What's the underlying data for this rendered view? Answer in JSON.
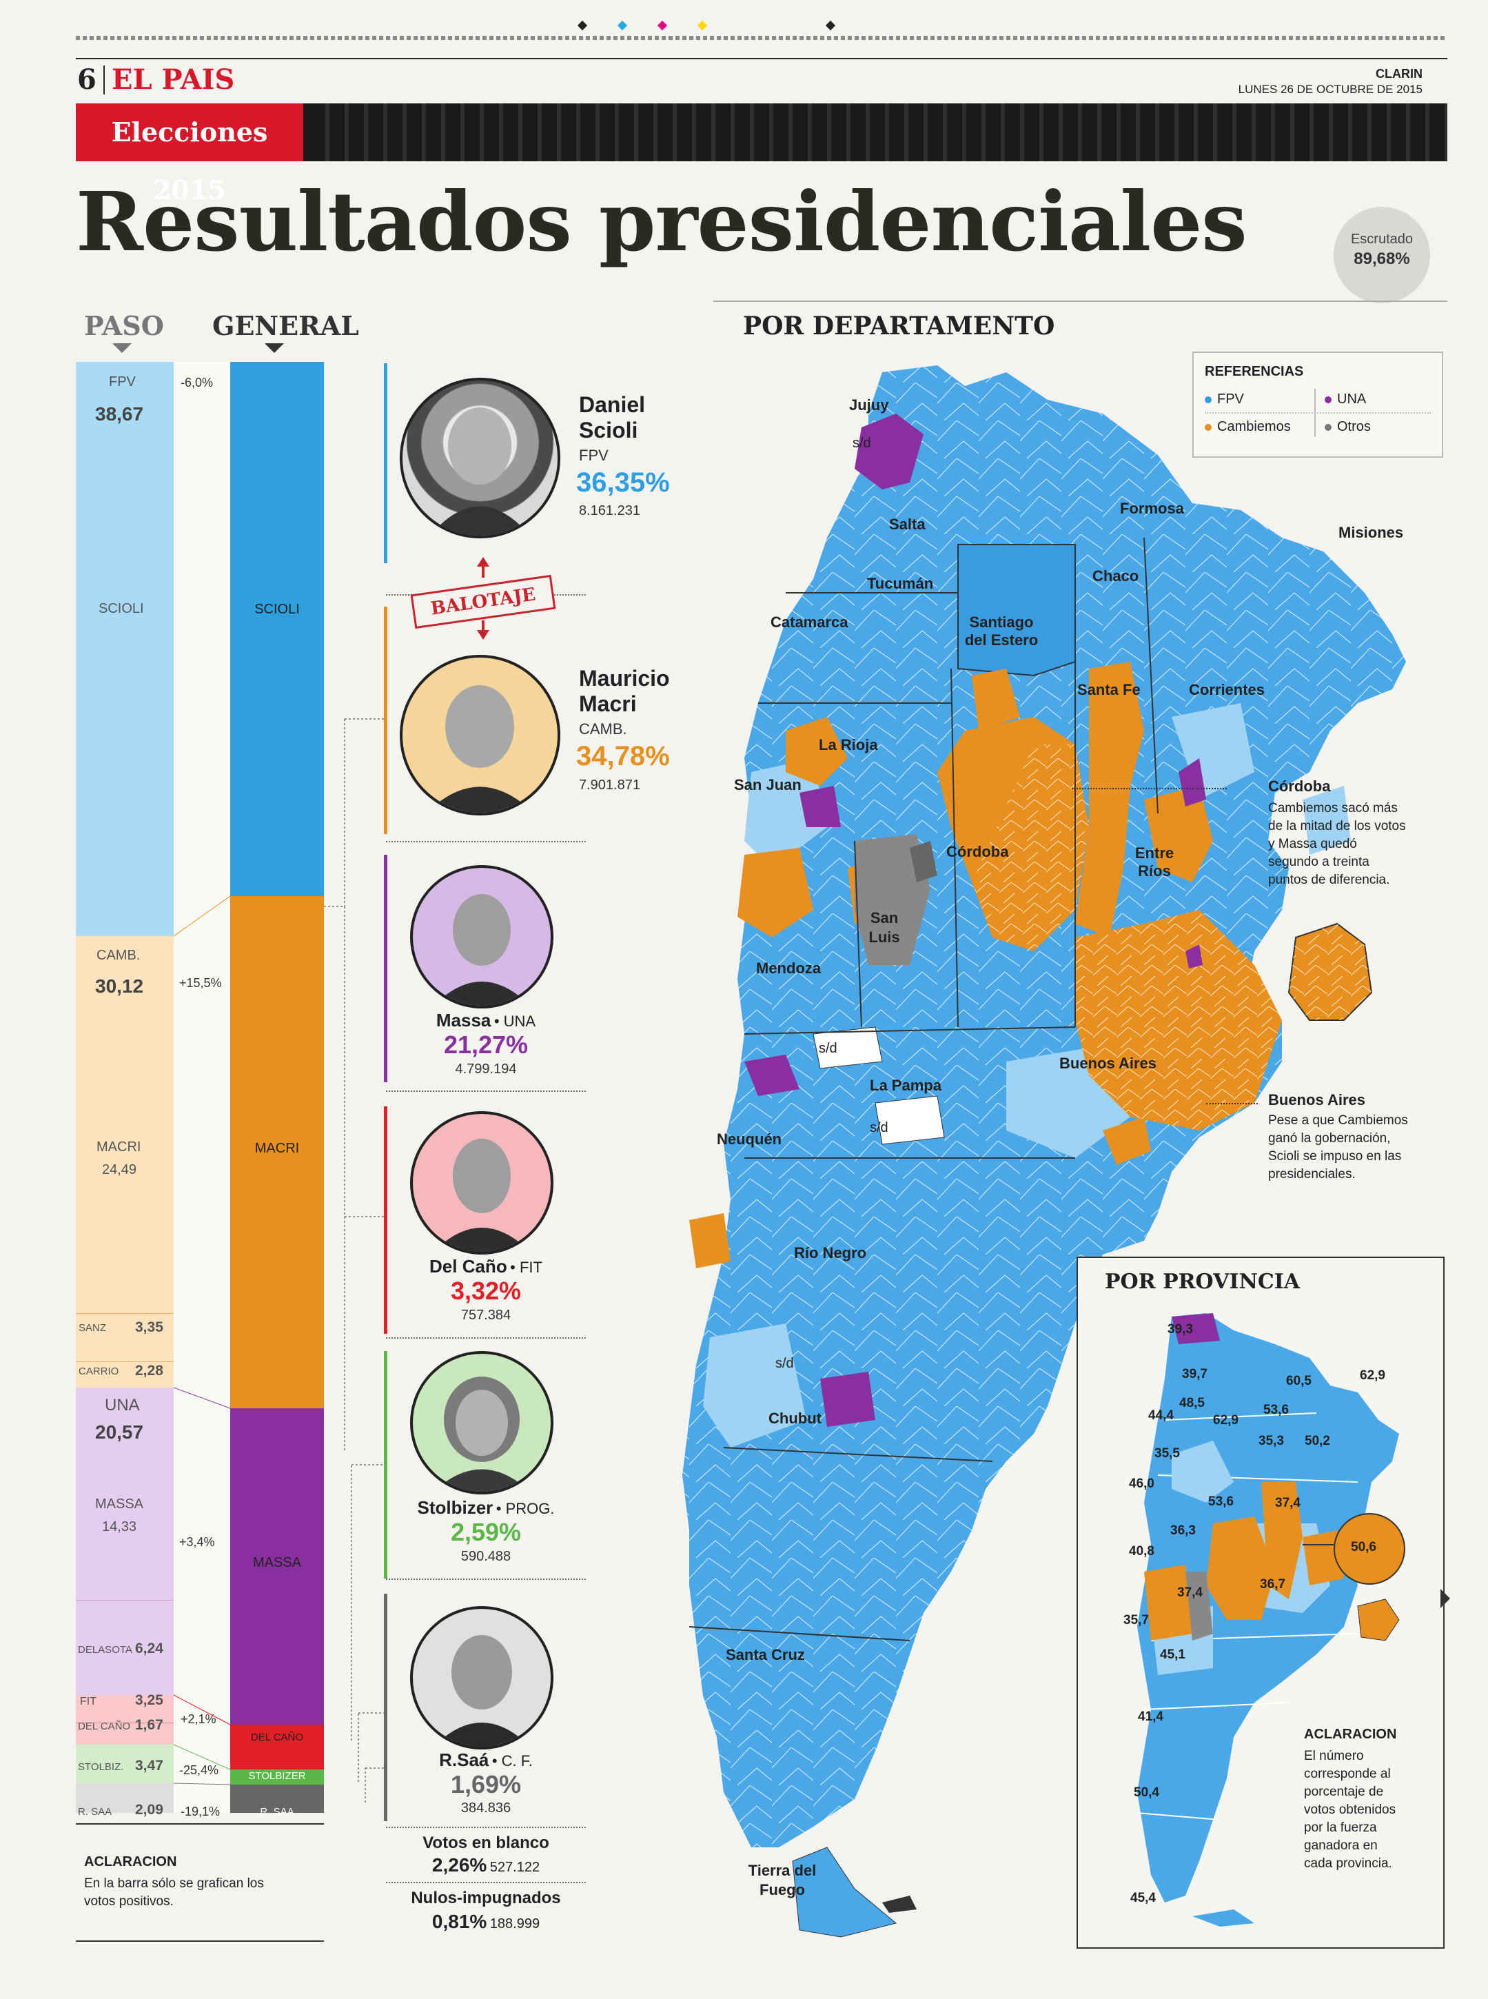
{
  "header": {
    "page_number": "6",
    "section": "EL PAIS",
    "publication": "CLARIN",
    "date": "LUNES 26 DE OCTUBRE DE 2015",
    "tag": "Elecciones 2015"
  },
  "title": "Resultados presidenciales",
  "escrutado": {
    "label": "Escrutado",
    "value": "89,68%"
  },
  "bars": {
    "paso_title": "PASO",
    "general_title": "GENERAL",
    "paso": [
      {
        "party": "FPV",
        "value": "38,67",
        "candidate": "SCIOLI"
      },
      {
        "party": "CAMB.",
        "value": "30,12",
        "candidate": "MACRI",
        "candidate_value": "24,49",
        "sub": [
          {
            "name": "SANZ",
            "value": "3,35"
          },
          {
            "name": "CARRIO",
            "value": "2,28"
          }
        ]
      },
      {
        "party": "UNA",
        "value": "20,57",
        "candidate": "MASSA",
        "candidate_value": "14,33",
        "sub": [
          {
            "name": "DELASOTA",
            "value": "6,24"
          }
        ]
      },
      {
        "party": "FIT",
        "value": "3,25",
        "sub": [
          {
            "name": "DEL CAÑO",
            "value": "1,67"
          }
        ]
      },
      {
        "party": "STOLBIZ.",
        "value": "3,47"
      },
      {
        "party": "R. SAA",
        "value": "2,09"
      }
    ],
    "deltas": [
      "-6,0%",
      "+15,5%",
      "+3,4%",
      "+2,1%",
      "-25,4%",
      "-19,1%"
    ],
    "general": [
      "SCIOLI",
      "MACRI",
      "MASSA",
      "DEL CAÑO",
      "STOLBIZER",
      "R. SAA"
    ],
    "aclaracion_title": "ACLARACION",
    "aclaracion_text": "En la barra sólo se grafican los votos positivos."
  },
  "candidates": [
    {
      "first": "Daniel",
      "last": "Scioli",
      "party": "FPV",
      "pct": "36,35%",
      "votes": "8.161.231",
      "color": "#2f9fe0"
    },
    {
      "first": "Mauricio",
      "last": "Macri",
      "party": "CAMB.",
      "pct": "34,78%",
      "votes": "7.901.871",
      "color": "#e8901f"
    },
    {
      "name": "Massa",
      "party": "UNA",
      "pct": "21,27%",
      "votes": "4.799.194",
      "color": "#8a2fa0"
    },
    {
      "name": "Del Caño",
      "party": "FIT",
      "pct": "3,32%",
      "votes": "757.384",
      "color": "#e01f26"
    },
    {
      "name": "Stolbizer",
      "party": "PROG.",
      "pct": "2,59%",
      "votes": "590.488",
      "color": "#5bb848"
    },
    {
      "name": "R.Saá",
      "party": "C. F.",
      "pct": "1,69%",
      "votes": "384.836",
      "color": "#666666"
    }
  ],
  "balotaje": "BALOTAJE",
  "blanco": {
    "label": "Votos en blanco",
    "pct": "2,26%",
    "votes": "527.122"
  },
  "nulos": {
    "label": "Nulos-impugnados",
    "pct": "0,81%",
    "votes": "188.999"
  },
  "map": {
    "title": "POR DEPARTAMENTO",
    "legend_title": "REFERENCIAS",
    "legend": [
      {
        "label": "FPV",
        "color": "#2f9fe0"
      },
      {
        "label": "Cambiemos",
        "color": "#e8901f"
      },
      {
        "label": "UNA",
        "color": "#8a2fa0"
      },
      {
        "label": "Otros",
        "color": "#777777"
      }
    ],
    "provinces": [
      "Jujuy",
      "Salta",
      "Formosa",
      "Misiones",
      "Chaco",
      "Tucumán",
      "Catamarca",
      "Santiago del Estero",
      "Santa Fe",
      "Corrientes",
      "La Rioja",
      "San Juan",
      "Córdoba",
      "Entre Ríos",
      "San Luis",
      "Mendoza",
      "Buenos Aires",
      "La Pampa",
      "Neuquén",
      "Río Negro",
      "Chubut",
      "Santa Cruz",
      "Tierra del Fuego"
    ],
    "sd": "s/d",
    "notes": [
      {
        "title": "Córdoba",
        "text": "Cambiemos sacó más de la mitad de los votos y Massa quedó segundo a treinta puntos de diferencia."
      },
      {
        "title": "Buenos Aires",
        "text": "Pese a que Cambiemos ganó la gobernación, Scioli se impuso en las presidenciales."
      }
    ]
  },
  "province_map": {
    "title": "POR PROVINCIA",
    "values": [
      "39,3",
      "39,7",
      "48,5",
      "44,4",
      "60,5",
      "62,9",
      "62,9",
      "53,6",
      "35,3",
      "50,2",
      "35,5",
      "46,0",
      "53,6",
      "37,4",
      "36,3",
      "40,8",
      "50,6",
      "37,4",
      "36,7",
      "35,7",
      "45,1",
      "41,4",
      "50,4",
      "45,4"
    ],
    "aclaracion_title": "ACLARACION",
    "aclaracion_text": "El número corresponde al porcentaje de votos obtenidos por la fuerza ganadora en cada provincia."
  }
}
